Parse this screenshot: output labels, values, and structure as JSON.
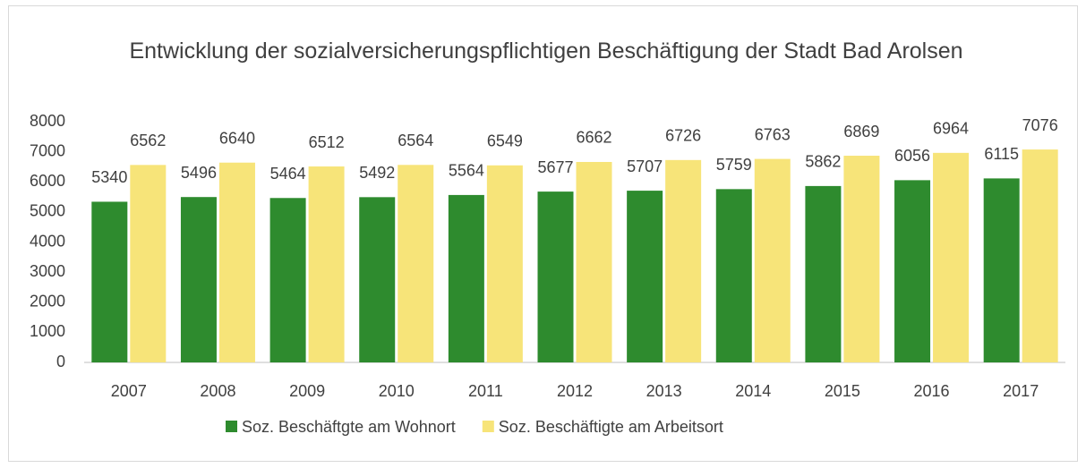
{
  "chart_data": {
    "type": "bar",
    "title": "Entwicklung der sozialversicherungspflichtigen Beschäftigung der Stadt Bad Arolsen",
    "categories": [
      "2007",
      "2008",
      "2009",
      "2010",
      "2011",
      "2012",
      "2013",
      "2014",
      "2015",
      "2016",
      "2017"
    ],
    "series": [
      {
        "name": "Soz. Beschäftgte am Wohnort",
        "color": "#2e8b2e",
        "values": [
          5340,
          5496,
          5464,
          5492,
          5564,
          5677,
          5707,
          5759,
          5862,
          6056,
          6115
        ]
      },
      {
        "name": "Soz. Beschäftigte am Arbeitsort",
        "color": "#f7e479",
        "values": [
          6562,
          6640,
          6512,
          6564,
          6549,
          6662,
          6726,
          6763,
          6869,
          6964,
          7076
        ]
      }
    ],
    "ylim": [
      0,
      8000
    ],
    "yticks": [
      0,
      1000,
      2000,
      3000,
      4000,
      5000,
      6000,
      7000,
      8000
    ],
    "grid": false,
    "legend": "bottom"
  }
}
